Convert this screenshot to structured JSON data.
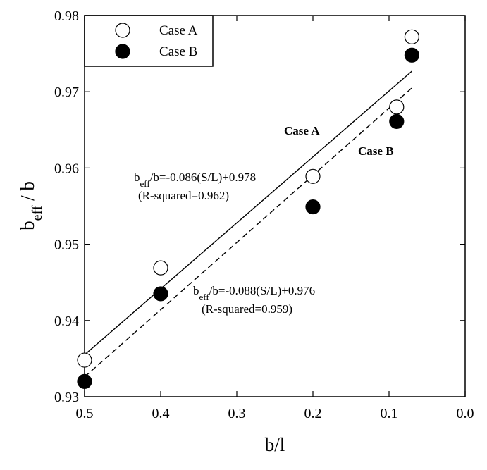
{
  "chart_data": {
    "type": "scatter",
    "title": "",
    "xlabel": "b/l",
    "ylabel_main": "b",
    "ylabel_sub": "eff",
    "ylabel_tail": " / b",
    "xlim": [
      0.5,
      0.0
    ],
    "ylim": [
      0.93,
      0.98
    ],
    "x_reversed": true,
    "x_ticks": [
      0.5,
      0.4,
      0.3,
      0.2,
      0.1,
      0.0
    ],
    "x_tick_labels": [
      "0.5",
      "0.4",
      "0.3",
      "0.2",
      "0.1",
      "0.0"
    ],
    "y_ticks": [
      0.93,
      0.94,
      0.95,
      0.96,
      0.97,
      0.98
    ],
    "y_tick_labels": [
      "0.93",
      "0.94",
      "0.95",
      "0.96",
      "0.97",
      "0.98"
    ],
    "grid": false,
    "legend_position": "top-left",
    "series": [
      {
        "name": "Case A",
        "marker": "open-circle",
        "x": [
          0.5,
          0.4,
          0.2,
          0.09,
          0.07
        ],
        "y": [
          0.9348,
          0.9469,
          0.9589,
          0.968,
          0.9772
        ],
        "fit": {
          "style": "solid",
          "x": [
            0.5,
            0.07
          ],
          "y": [
            0.9355,
            0.9727
          ]
        }
      },
      {
        "name": "Case B",
        "marker": "filled-circle",
        "x": [
          0.5,
          0.4,
          0.2,
          0.09,
          0.07
        ],
        "y": [
          0.932,
          0.9435,
          0.9549,
          0.9661,
          0.9748
        ],
        "fit": {
          "style": "dashed",
          "x": [
            0.5,
            0.07
          ],
          "y": [
            0.9326,
            0.9705
          ]
        }
      }
    ],
    "annotations": {
      "case_a_label": "Case A",
      "case_b_label": "Case B",
      "eq_a": {
        "lead": "b",
        "sub": "eff",
        "rest": "/b=-0.086(S/L)+0.978",
        "r2": "(R-squared=0.962)"
      },
      "eq_b": {
        "lead": "b",
        "sub": "eff",
        "rest": "/b=-0.088(S/L)+0.976",
        "r2": "(R-squared=0.959)"
      }
    }
  }
}
